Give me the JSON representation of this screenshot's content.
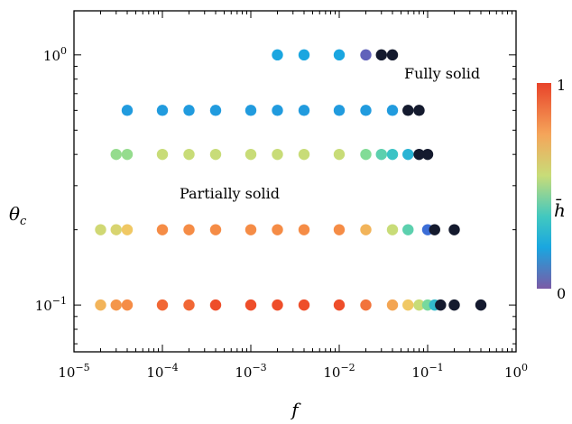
{
  "chart_data": {
    "type": "scatter",
    "title": "",
    "xlabel": {
      "base": "f"
    },
    "ylabel": {
      "base": "θ",
      "sub": "c"
    },
    "xscale": "log",
    "yscale": "log",
    "xlim": [
      1e-05,
      1
    ],
    "ylim": [
      0.065,
      1.5
    ],
    "x_ticks": [
      {
        "base": "10",
        "exp": "−5",
        "value": 1e-05
      },
      {
        "base": "10",
        "exp": "−4",
        "value": 0.0001
      },
      {
        "base": "10",
        "exp": "−3",
        "value": 0.001
      },
      {
        "base": "10",
        "exp": "−2",
        "value": 0.01
      },
      {
        "base": "10",
        "exp": "−1",
        "value": 0.1
      },
      {
        "base": "10",
        "exp": "0",
        "value": 1
      }
    ],
    "y_ticks": [
      {
        "base": "10",
        "exp": "−1",
        "value": 0.1
      },
      {
        "base": "10",
        "exp": "0",
        "value": 1
      }
    ],
    "annotations": [
      {
        "text": "Fully solid",
        "x": 0.11,
        "y": 0.78
      },
      {
        "text": "Partially solid",
        "x": 0.00042,
        "y": 0.27
      }
    ],
    "colorbar": {
      "label": "h̄",
      "min_label": "0",
      "max_label": "1",
      "range": [
        0,
        1
      ],
      "colormap": "turbo"
    },
    "grid": false,
    "points": [
      {
        "x": 0.002,
        "y": 1.0,
        "h": 0.22
      },
      {
        "x": 0.004,
        "y": 1.0,
        "h": 0.22
      },
      {
        "x": 0.01,
        "y": 1.0,
        "h": 0.22
      },
      {
        "x": 0.02,
        "y": 1.0,
        "h": 0.05
      },
      {
        "x": 0.03,
        "y": 1.0,
        "h": -1
      },
      {
        "x": 0.04,
        "y": 1.0,
        "h": -1
      },
      {
        "x": 4e-05,
        "y": 0.6,
        "h": 0.2
      },
      {
        "x": 0.0001,
        "y": 0.6,
        "h": 0.2
      },
      {
        "x": 0.0002,
        "y": 0.6,
        "h": 0.2
      },
      {
        "x": 0.0004,
        "y": 0.6,
        "h": 0.2
      },
      {
        "x": 0.001,
        "y": 0.6,
        "h": 0.2
      },
      {
        "x": 0.002,
        "y": 0.6,
        "h": 0.2
      },
      {
        "x": 0.004,
        "y": 0.6,
        "h": 0.2
      },
      {
        "x": 0.01,
        "y": 0.6,
        "h": 0.2
      },
      {
        "x": 0.02,
        "y": 0.6,
        "h": 0.2
      },
      {
        "x": 0.04,
        "y": 0.6,
        "h": 0.2
      },
      {
        "x": 0.06,
        "y": 0.6,
        "h": -1
      },
      {
        "x": 0.08,
        "y": 0.6,
        "h": -1
      },
      {
        "x": 3e-05,
        "y": 0.4,
        "h": 0.5
      },
      {
        "x": 4e-05,
        "y": 0.4,
        "h": 0.5
      },
      {
        "x": 0.0001,
        "y": 0.4,
        "h": 0.58
      },
      {
        "x": 0.0002,
        "y": 0.4,
        "h": 0.58
      },
      {
        "x": 0.0004,
        "y": 0.4,
        "h": 0.58
      },
      {
        "x": 0.001,
        "y": 0.4,
        "h": 0.58
      },
      {
        "x": 0.002,
        "y": 0.4,
        "h": 0.58
      },
      {
        "x": 0.004,
        "y": 0.4,
        "h": 0.58
      },
      {
        "x": 0.01,
        "y": 0.4,
        "h": 0.58
      },
      {
        "x": 0.02,
        "y": 0.4,
        "h": 0.47
      },
      {
        "x": 0.03,
        "y": 0.4,
        "h": 0.4
      },
      {
        "x": 0.04,
        "y": 0.4,
        "h": 0.33
      },
      {
        "x": 0.06,
        "y": 0.4,
        "h": 0.27
      },
      {
        "x": 0.08,
        "y": 0.4,
        "h": -1
      },
      {
        "x": 0.1,
        "y": 0.4,
        "h": -1
      },
      {
        "x": 2e-05,
        "y": 0.2,
        "h": 0.6
      },
      {
        "x": 3e-05,
        "y": 0.2,
        "h": 0.62
      },
      {
        "x": 4e-05,
        "y": 0.2,
        "h": 0.68
      },
      {
        "x": 0.0001,
        "y": 0.2,
        "h": 0.8
      },
      {
        "x": 0.0002,
        "y": 0.2,
        "h": 0.8
      },
      {
        "x": 0.0004,
        "y": 0.2,
        "h": 0.8
      },
      {
        "x": 0.001,
        "y": 0.2,
        "h": 0.8
      },
      {
        "x": 0.002,
        "y": 0.2,
        "h": 0.8
      },
      {
        "x": 0.004,
        "y": 0.2,
        "h": 0.8
      },
      {
        "x": 0.01,
        "y": 0.2,
        "h": 0.8
      },
      {
        "x": 0.02,
        "y": 0.2,
        "h": 0.72
      },
      {
        "x": 0.04,
        "y": 0.2,
        "h": 0.58
      },
      {
        "x": 0.06,
        "y": 0.2,
        "h": 0.4
      },
      {
        "x": 0.1,
        "y": 0.2,
        "h": 0.12
      },
      {
        "x": 0.12,
        "y": 0.2,
        "h": -1
      },
      {
        "x": 0.2,
        "y": 0.2,
        "h": -1
      },
      {
        "x": 2e-05,
        "y": 0.1,
        "h": 0.72
      },
      {
        "x": 3e-05,
        "y": 0.1,
        "h": 0.78
      },
      {
        "x": 4e-05,
        "y": 0.1,
        "h": 0.8
      },
      {
        "x": 0.0001,
        "y": 0.1,
        "h": 0.86
      },
      {
        "x": 0.0002,
        "y": 0.1,
        "h": 0.86
      },
      {
        "x": 0.0004,
        "y": 0.1,
        "h": 0.9
      },
      {
        "x": 0.001,
        "y": 0.1,
        "h": 0.9
      },
      {
        "x": 0.002,
        "y": 0.1,
        "h": 0.9
      },
      {
        "x": 0.004,
        "y": 0.1,
        "h": 0.9
      },
      {
        "x": 0.01,
        "y": 0.1,
        "h": 0.9
      },
      {
        "x": 0.02,
        "y": 0.1,
        "h": 0.84
      },
      {
        "x": 0.04,
        "y": 0.1,
        "h": 0.75
      },
      {
        "x": 0.06,
        "y": 0.1,
        "h": 0.68
      },
      {
        "x": 0.08,
        "y": 0.1,
        "h": 0.58
      },
      {
        "x": 0.1,
        "y": 0.1,
        "h": 0.45
      },
      {
        "x": 0.12,
        "y": 0.1,
        "h": 0.3
      },
      {
        "x": 0.14,
        "y": 0.1,
        "h": -1
      },
      {
        "x": 0.2,
        "y": 0.1,
        "h": -1
      },
      {
        "x": 0.4,
        "y": 0.1,
        "h": -1
      }
    ]
  }
}
